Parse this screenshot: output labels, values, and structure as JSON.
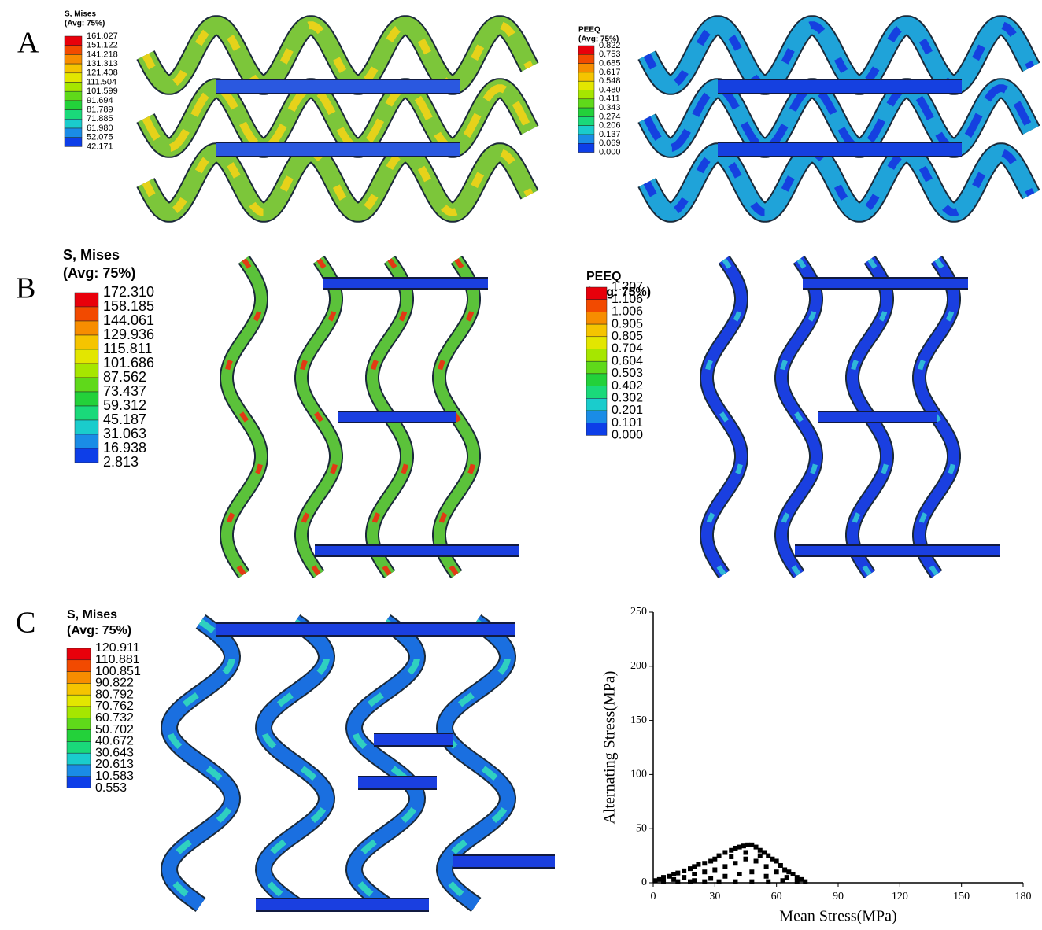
{
  "contour_colors": [
    "#e8000b",
    "#f24a00",
    "#f78d00",
    "#f5c400",
    "#e3e600",
    "#a6e600",
    "#5fd91a",
    "#23d13a",
    "#1ad97a",
    "#1acccc",
    "#1a8ce6",
    "#0d3ee8"
  ],
  "panels": [
    {
      "label": "A",
      "legends": [
        {
          "title": "S, Mises",
          "subtitle": "(Avg: 75%)",
          "values": [
            "161.027",
            "151.122",
            "141.218",
            "131.313",
            "121.408",
            "111.504",
            "101.599",
            "91.694",
            "81.789",
            "71.885",
            "61.980",
            "52.075",
            "42.171"
          ]
        },
        {
          "title": "PEEQ",
          "subtitle": "(Avg: 75%)",
          "values": [
            "0.822",
            "0.753",
            "0.685",
            "0.617",
            "0.548",
            "0.480",
            "0.411",
            "0.343",
            "0.274",
            "0.206",
            "0.137",
            "0.069",
            "0.000"
          ]
        }
      ]
    },
    {
      "label": "B",
      "legends": [
        {
          "title": "S, Mises",
          "subtitle": "(Avg: 75%)",
          "values": [
            "172.310",
            "158.185",
            "144.061",
            "129.936",
            "115.811",
            "101.686",
            "87.562",
            "73.437",
            "59.312",
            "45.187",
            "31.063",
            "16.938",
            "2.813"
          ]
        },
        {
          "title": "PEEQ",
          "subtitle": "(Avg: 75%)",
          "values": [
            "1.207",
            "1.106",
            "1.006",
            "0.905",
            "0.805",
            "0.704",
            "0.604",
            "0.503",
            "0.402",
            "0.302",
            "0.201",
            "0.101",
            "0.000"
          ]
        }
      ]
    },
    {
      "label": "C",
      "legends": [
        {
          "title": "S, Mises",
          "subtitle": "(Avg: 75%)",
          "values": [
            "120.911",
            "110.881",
            "100.851",
            "90.822",
            "80.792",
            "70.762",
            "60.732",
            "50.702",
            "40.672",
            "30.643",
            "20.613",
            "10.583",
            "0.553"
          ]
        }
      ]
    }
  ],
  "chart_data": {
    "type": "scatter",
    "xlabel": "Mean Stress(MPa)",
    "ylabel": "Alternating Stress(MPa)",
    "color": "#000000",
    "x": [
      1,
      3,
      5,
      8,
      10,
      12,
      15,
      18,
      20,
      22,
      25,
      28,
      30,
      32,
      35,
      38,
      40,
      42,
      44,
      46,
      48,
      50,
      52,
      54,
      56,
      58,
      60,
      62,
      64,
      66,
      68,
      70,
      72,
      74,
      10,
      15,
      20,
      25,
      30,
      35,
      40,
      45,
      50,
      55,
      60,
      65,
      20,
      28,
      35,
      42,
      48,
      55,
      38,
      45,
      52,
      5,
      12,
      18,
      25,
      32,
      40,
      48,
      56,
      63,
      70
    ],
    "y": [
      2,
      3,
      5,
      6,
      8,
      9,
      11,
      13,
      15,
      17,
      18,
      20,
      22,
      25,
      28,
      30,
      32,
      33,
      34,
      35,
      35,
      33,
      30,
      28,
      25,
      22,
      20,
      16,
      12,
      10,
      8,
      5,
      3,
      1,
      3,
      5,
      8,
      10,
      12,
      15,
      18,
      22,
      20,
      15,
      10,
      5,
      2,
      4,
      6,
      8,
      10,
      6,
      24,
      28,
      25,
      1,
      1,
      1,
      1,
      1,
      1,
      1,
      1,
      2,
      1
    ],
    "xlim": [
      0,
      180
    ],
    "ylim": [
      0,
      250
    ],
    "xticks": [
      0,
      30,
      60,
      90,
      120,
      150,
      180
    ],
    "yticks": [
      0,
      50,
      100,
      150,
      200,
      250
    ]
  }
}
